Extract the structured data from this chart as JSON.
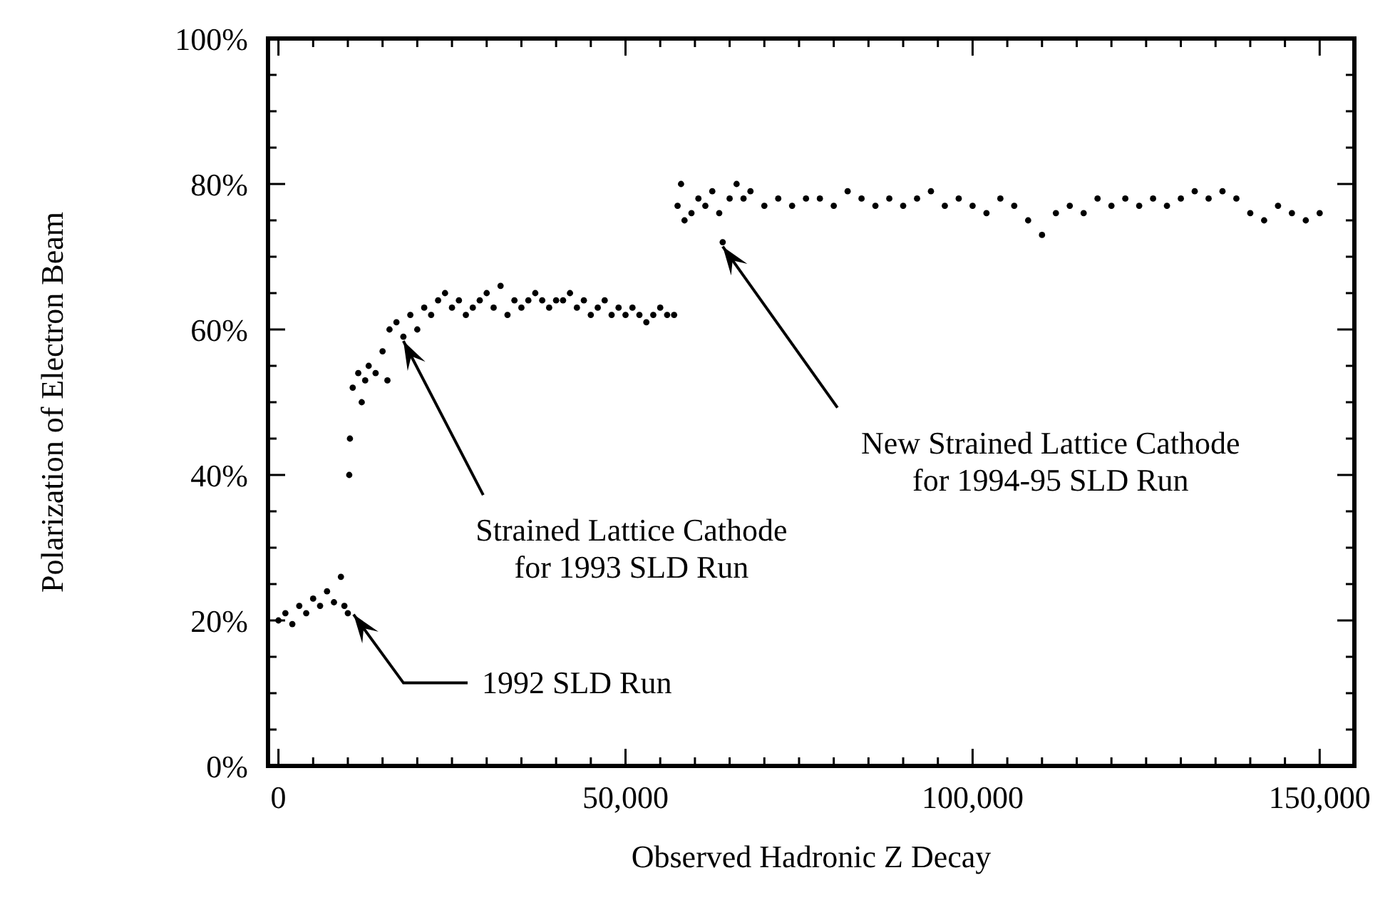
{
  "chart_data": {
    "type": "scatter",
    "xlabel": "Observed Hadronic Z Decay",
    "ylabel": "Polarization of Electron Beam",
    "xlim": [
      -1500,
      155000
    ],
    "ylim": [
      0,
      100
    ],
    "marker": "circle",
    "xticks": [
      {
        "value": 0,
        "label": "0"
      },
      {
        "value": 5000,
        "label": null
      },
      {
        "value": 10000,
        "label": null
      },
      {
        "value": 15000,
        "label": null
      },
      {
        "value": 20000,
        "label": null
      },
      {
        "value": 25000,
        "label": null
      },
      {
        "value": 30000,
        "label": null
      },
      {
        "value": 35000,
        "label": null
      },
      {
        "value": 40000,
        "label": null
      },
      {
        "value": 45000,
        "label": null
      },
      {
        "value": 50000,
        "label": "50,000"
      },
      {
        "value": 55000,
        "label": null
      },
      {
        "value": 60000,
        "label": null
      },
      {
        "value": 65000,
        "label": null
      },
      {
        "value": 70000,
        "label": null
      },
      {
        "value": 75000,
        "label": null
      },
      {
        "value": 80000,
        "label": null
      },
      {
        "value": 85000,
        "label": null
      },
      {
        "value": 90000,
        "label": null
      },
      {
        "value": 95000,
        "label": null
      },
      {
        "value": 100000,
        "label": "100,000"
      },
      {
        "value": 105000,
        "label": null
      },
      {
        "value": 110000,
        "label": null
      },
      {
        "value": 115000,
        "label": null
      },
      {
        "value": 120000,
        "label": null
      },
      {
        "value": 125000,
        "label": null
      },
      {
        "value": 130000,
        "label": null
      },
      {
        "value": 135000,
        "label": null
      },
      {
        "value": 140000,
        "label": null
      },
      {
        "value": 145000,
        "label": null
      },
      {
        "value": 150000,
        "label": "150,000"
      }
    ],
    "yticks": [
      {
        "value": 0,
        "label": "0%"
      },
      {
        "value": 5,
        "label": null
      },
      {
        "value": 10,
        "label": null
      },
      {
        "value": 15,
        "label": null
      },
      {
        "value": 20,
        "label": "20%"
      },
      {
        "value": 25,
        "label": null
      },
      {
        "value": 30,
        "label": null
      },
      {
        "value": 35,
        "label": null
      },
      {
        "value": 40,
        "label": "40%"
      },
      {
        "value": 45,
        "label": null
      },
      {
        "value": 50,
        "label": null
      },
      {
        "value": 55,
        "label": null
      },
      {
        "value": 60,
        "label": "60%"
      },
      {
        "value": 65,
        "label": null
      },
      {
        "value": 70,
        "label": null
      },
      {
        "value": 75,
        "label": null
      },
      {
        "value": 80,
        "label": "80%"
      },
      {
        "value": 85,
        "label": null
      },
      {
        "value": 90,
        "label": null
      },
      {
        "value": 95,
        "label": null
      },
      {
        "value": 100,
        "label": "100%"
      }
    ],
    "series": [
      {
        "color": "#000000",
        "x": [
          0,
          1000,
          2000,
          3000,
          4000,
          5000,
          6000,
          7000,
          8000,
          9000,
          9500,
          10000,
          10200,
          10300,
          10700,
          11500,
          12000,
          12500,
          13000,
          14000,
          15000,
          15700,
          16000,
          17000,
          18000,
          19000,
          20000,
          21000,
          22000,
          23000,
          24000,
          25000,
          26000,
          27000,
          28000,
          29000,
          30000,
          31000,
          32000,
          33000,
          34000,
          35000,
          36000,
          37000,
          38000,
          39000,
          40000,
          41000,
          42000,
          43000,
          44000,
          45000,
          46000,
          47000,
          48000,
          49000,
          50000,
          51000,
          52000,
          53000,
          54000,
          55000,
          56000,
          57000,
          57500,
          58000,
          58500,
          59500,
          60500,
          61500,
          62500,
          63500,
          64000,
          65000,
          66000,
          67000,
          68000,
          70000,
          72000,
          74000,
          76000,
          78000,
          80000,
          82000,
          84000,
          86000,
          88000,
          90000,
          92000,
          94000,
          96000,
          98000,
          100000,
          102000,
          104000,
          106000,
          108000,
          110000,
          112000,
          114000,
          116000,
          118000,
          120000,
          122000,
          124000,
          126000,
          128000,
          130000,
          132000,
          134000,
          136000,
          138000,
          140000,
          142000,
          144000,
          146000,
          148000,
          150000
        ],
        "values": [
          20,
          21,
          19.5,
          22,
          21,
          23,
          22,
          24,
          22.5,
          26,
          22,
          21,
          40,
          45,
          52,
          54,
          50,
          53,
          55,
          54,
          57,
          53,
          60,
          61,
          59,
          62,
          60,
          63,
          62,
          64,
          65,
          63,
          64,
          62,
          63,
          64,
          65,
          63,
          66,
          62,
          64,
          63,
          64,
          65,
          64,
          63,
          64,
          64,
          65,
          63,
          64,
          62,
          63,
          64,
          62,
          63,
          62,
          63,
          62,
          61,
          62,
          63,
          62,
          62,
          77,
          80,
          75,
          76,
          78,
          77,
          79,
          76,
          72,
          78,
          80,
          78,
          79,
          77,
          78,
          77,
          78,
          78,
          77,
          79,
          78,
          77,
          78,
          77,
          78,
          79,
          77,
          78,
          77,
          76,
          78,
          77,
          75,
          73,
          76,
          77,
          76,
          78,
          77,
          78,
          77,
          78,
          77,
          78,
          79,
          78,
          79,
          78,
          76,
          75,
          77,
          76,
          75,
          76
        ]
      }
    ],
    "annotations": [
      {
        "text": "1992 SLD Run",
        "x": 10000,
        "y": 22
      },
      {
        "text": "Strained Lattice Cathode\nfor 1993 SLD Run",
        "x": 18000,
        "y": 59
      },
      {
        "text": "New Strained Lattice Cathode\nfor 1994-95 SLD Run",
        "x": 64000,
        "y": 72
      }
    ]
  }
}
